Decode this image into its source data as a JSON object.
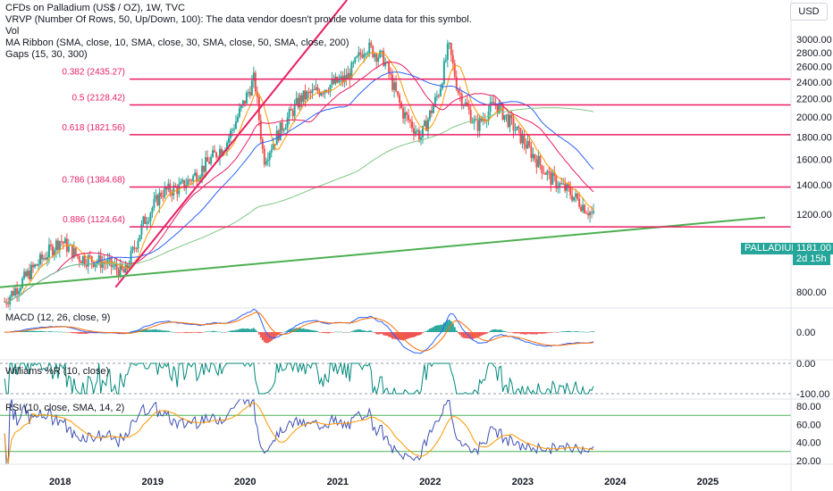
{
  "header": {
    "title": "CFDs on Palladium (US$ / OZ), 1W, TVC",
    "indicators": [
      "VRVP (Number Of Rows, 50, Up/Down, 100): The data vendor doesn't provide volume data for this symbol.",
      "Vol",
      "MA Ribbon (SMA, close, 10, SMA, close, 30, SMA, close, 50, SMA, close, 200)",
      "Gaps (15, 30, 300)"
    ],
    "currency": "USD"
  },
  "price_tag": {
    "symbol": "PALLADIUM",
    "value": "1181.00",
    "countdown": "2d 15h"
  },
  "panes": {
    "macd": "MACD (12, 26, close, 9)",
    "williams": "Williams %R (10, close)",
    "rsi": "RSI (10, close, SMA, 14, 2)"
  },
  "colors": {
    "fib": "#e91e63",
    "trend_up": "#e91e63",
    "trend_support": "#4caf50",
    "ma10": "#ff9800",
    "ma30": "#e91e63",
    "ma50": "#2962ff",
    "ma200": "#81c784",
    "up": "#26a69a",
    "down": "#ef5350",
    "macd": "#2962ff",
    "signal": "#ff6d00",
    "rsi": "#3f51b5",
    "rsi_ma": "#ff9800",
    "wr": "#00897b"
  },
  "chart_data": {
    "type": "candlestick",
    "x_ticks": [
      "2018",
      "2019",
      "2020",
      "2021",
      "2022",
      "2023",
      "2024",
      "2025"
    ],
    "price_axis": {
      "ticks": [
        "3000.00",
        "2800.00",
        "2600.00",
        "2400.00",
        "2200.00",
        "2000.00",
        "1800.00",
        "1600.00",
        "1400.00",
        "1200.00",
        "1000.00",
        "800.00"
      ],
      "scale": "log"
    },
    "fib_levels": [
      {
        "label": "0.382 (2435.27)",
        "price": 2435.27
      },
      {
        "label": "0.5 (2128.42)",
        "price": 2128.42
      },
      {
        "label": "0.618 (1821.56)",
        "price": 1821.56
      },
      {
        "label": "0.786 (1384.68)",
        "price": 1384.68
      },
      {
        "label": "0.886 (1124.64)",
        "price": 1124.64
      }
    ],
    "price_path": [
      [
        2017.4,
        760
      ],
      [
        2017.7,
        900
      ],
      [
        2018.0,
        1050
      ],
      [
        2018.2,
        960
      ],
      [
        2018.5,
        930
      ],
      [
        2018.7,
        880
      ],
      [
        2018.9,
        1150
      ],
      [
        2019.1,
        1350
      ],
      [
        2019.3,
        1380
      ],
      [
        2019.5,
        1500
      ],
      [
        2019.8,
        1750
      ],
      [
        2020.1,
        2450
      ],
      [
        2020.2,
        1600
      ],
      [
        2020.4,
        1900
      ],
      [
        2020.6,
        2200
      ],
      [
        2020.9,
        2350
      ],
      [
        2021.1,
        2450
      ],
      [
        2021.3,
        2900
      ],
      [
        2021.5,
        2700
      ],
      [
        2021.7,
        2050
      ],
      [
        2021.9,
        1800
      ],
      [
        2022.1,
        2300
      ],
      [
        2022.2,
        2900
      ],
      [
        2022.3,
        2300
      ],
      [
        2022.5,
        1900
      ],
      [
        2022.7,
        2150
      ],
      [
        2022.9,
        1900
      ],
      [
        2023.1,
        1650
      ],
      [
        2023.3,
        1450
      ],
      [
        2023.5,
        1350
      ],
      [
        2023.7,
        1230
      ],
      [
        2023.78,
        1181
      ]
    ],
    "macd_axis": {
      "ticks": [
        "0.00"
      ]
    },
    "williams_axis": {
      "ticks": [
        "0.00",
        "-100.00"
      ]
    },
    "rsi_axis": {
      "ticks": [
        "80.00",
        "60.00",
        "40.00",
        "20.00"
      ],
      "bands": [
        70,
        30
      ]
    }
  }
}
